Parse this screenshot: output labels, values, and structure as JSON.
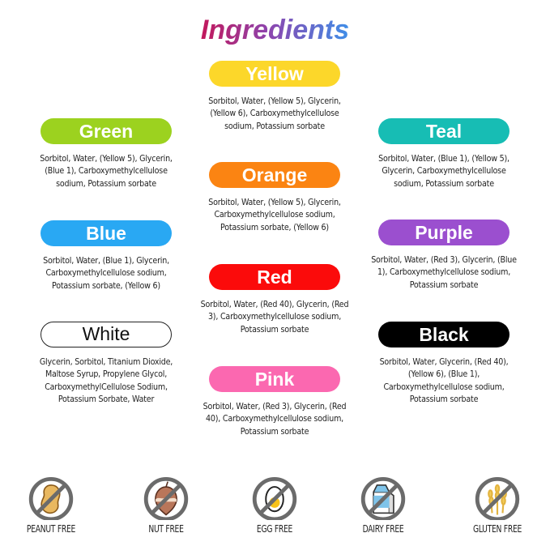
{
  "title": "Ingredients",
  "colors": [
    {
      "label": "Yellow",
      "color": "#fcd72a",
      "text": "#ffffff",
      "ingredients": "Sorbitol, Water, (Yellow 5), Glycerin, (Yellow 6), Carboxymethylcellulose sodium, Potassium sorbate"
    },
    {
      "label": "Green",
      "color": "#9cd21f",
      "text": "#ffffff",
      "ingredients": "Sorbitol, Water, (Yellow 5), Glycerin, (Blue 1), Carboxymethylcellulose sodium, Potassium sorbate"
    },
    {
      "label": "Teal",
      "color": "#17bdb4",
      "text": "#ffffff",
      "ingredients": "Sorbitol, Water, (Blue 1), (Yellow 5), Glycerin, Carboxymethylcellulose sodium, Potassium sorbate"
    },
    {
      "label": "Orange",
      "color": "#fb8412",
      "text": "#ffffff",
      "ingredients": "Sorbitol, Water, (Yellow 5), Glycerin, Carboxymethylcellulose sodium, Potassium sorbate, (Yellow 6)"
    },
    {
      "label": "Blue",
      "color": "#29a8f3",
      "text": "#ffffff",
      "ingredients": "Sorbitol, Water, (Blue 1), Glycerin, Carboxymethylcellulose sodium, Potassium sorbate, (Yellow 6)"
    },
    {
      "label": "Purple",
      "color": "#9b4fcf",
      "text": "#ffffff",
      "ingredients": "Sorbitol, Water, (Red 3), Glycerin, (Blue 1), Carboxymethylcellulose sodium, Potassium sorbate"
    },
    {
      "label": "Red",
      "color": "#fb0b0b",
      "text": "#ffffff",
      "ingredients": "Sorbitol, Water, (Red 40), Glycerin, (Red 3), Carboxymethylcellulose sodium, Potassium sorbate"
    },
    {
      "label": "White",
      "color": "#ffffff",
      "text": "#111111",
      "ingredients": "Glycerin, Sorbitol, Titanium Dioxide, Maltose Syrup, Propylene Glycol, CarboxymethylCellulose Sodium, Potassium Sorbate, Water"
    },
    {
      "label": "Black",
      "color": "#000000",
      "text": "#ffffff",
      "ingredients": "Sorbitol, Water, Glycerin, (Red 40), (Yellow 6), (Blue 1), Carboxymethylcellulose sodium, Potassium sorbate"
    },
    {
      "label": "Pink",
      "color": "#fb68b0",
      "text": "#ffffff",
      "ingredients": "Sorbitol, Water, (Red 3), Glycerin, (Red 40), Carboxymethylcellulose sodium, Potassium sorbate"
    }
  ],
  "badges": [
    {
      "label": "PEANUT FREE",
      "icon": "peanut-icon"
    },
    {
      "label": "NUT FREE",
      "icon": "nut-icon"
    },
    {
      "label": "EGG FREE",
      "icon": "egg-icon"
    },
    {
      "label": "DAIRY FREE",
      "icon": "milk-carton-icon"
    },
    {
      "label": "GLUTEN FREE",
      "icon": "wheat-icon"
    }
  ]
}
